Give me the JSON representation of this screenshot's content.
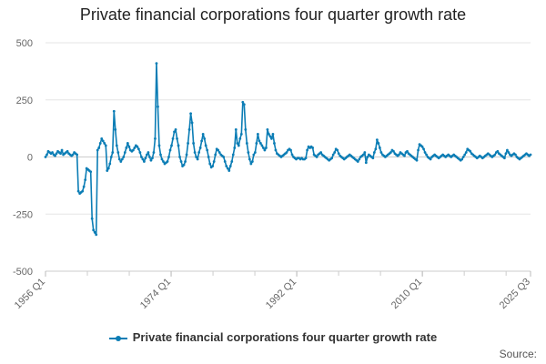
{
  "chart_data": {
    "type": "line",
    "title": "Private financial corporations four quarter growth rate",
    "xlabel": "",
    "ylabel": "",
    "ylim": [
      -500,
      500
    ],
    "yticks": [
      500,
      250,
      0,
      -250,
      -500
    ],
    "x_start": "1956 Q1",
    "x_end": "2025 Q3",
    "xtick_labels": [
      "1956 Q1",
      "1974 Q1",
      "1992 Q1",
      "2010 Q1",
      "2025 Q3"
    ],
    "grid": true,
    "legend_position": "bottom-center",
    "color": "#0b7db5",
    "series": [
      {
        "name": "Private financial corporations four quarter growth rate",
        "values": [
          0,
          10,
          25,
          20,
          15,
          20,
          10,
          5,
          15,
          25,
          20,
          15,
          30,
          10,
          15,
          20,
          25,
          15,
          10,
          5,
          10,
          20,
          15,
          10,
          -150,
          -160,
          -155,
          -150,
          -130,
          -100,
          -50,
          -55,
          -60,
          -65,
          -270,
          -320,
          -330,
          -340,
          30,
          40,
          60,
          80,
          70,
          60,
          50,
          -60,
          -50,
          -30,
          0,
          20,
          200,
          120,
          50,
          20,
          -10,
          -20,
          -10,
          0,
          20,
          40,
          60,
          45,
          30,
          25,
          30,
          40,
          50,
          45,
          35,
          20,
          0,
          -10,
          -20,
          -5,
          10,
          20,
          0,
          -15,
          -5,
          20,
          80,
          410,
          220,
          50,
          10,
          -10,
          -20,
          -30,
          -25,
          -20,
          0,
          30,
          50,
          80,
          110,
          120,
          80,
          50,
          0,
          -20,
          -40,
          -35,
          -20,
          10,
          60,
          120,
          190,
          150,
          60,
          20,
          0,
          -10,
          20,
          40,
          70,
          100,
          80,
          50,
          30,
          0,
          -30,
          -45,
          -40,
          -20,
          10,
          35,
          30,
          20,
          10,
          5,
          0,
          -20,
          -40,
          -50,
          -60,
          -40,
          -20,
          10,
          40,
          120,
          60,
          50,
          80,
          100,
          240,
          230,
          120,
          60,
          20,
          -10,
          -30,
          -20,
          10,
          20,
          60,
          100,
          70,
          60,
          50,
          40,
          30,
          40,
          120,
          100,
          90,
          80,
          100,
          60,
          30,
          15,
          10,
          5,
          0,
          5,
          10,
          15,
          20,
          30,
          35,
          30,
          10,
          0,
          -5,
          -10,
          -5,
          -5,
          -10,
          -5,
          -10,
          -10,
          -5,
          30,
          45,
          40,
          45,
          40,
          10,
          5,
          0,
          10,
          15,
          20,
          10,
          5,
          0,
          -5,
          -10,
          -15,
          -10,
          -5,
          10,
          20,
          35,
          30,
          15,
          5,
          0,
          -5,
          -10,
          -5,
          0,
          5,
          10,
          5,
          0,
          -5,
          -10,
          -15,
          -20,
          -10,
          0,
          5,
          10,
          20,
          -25,
          0,
          10,
          5,
          0,
          -5,
          20,
          35,
          75,
          60,
          40,
          20,
          10,
          5,
          0,
          5,
          10,
          15,
          20,
          30,
          25,
          15,
          10,
          5,
          10,
          20,
          15,
          10,
          5,
          20,
          25,
          15,
          10,
          5,
          0,
          -5,
          -10,
          -15,
          30,
          55,
          50,
          45,
          35,
          20,
          10,
          0,
          -5,
          -10,
          0,
          5,
          10,
          5,
          0,
          -5,
          0,
          5,
          10,
          5,
          0,
          5,
          10,
          5,
          0,
          5,
          10,
          5,
          0,
          -5,
          -10,
          -15,
          -10,
          0,
          10,
          20,
          35,
          30,
          25,
          15,
          10,
          5,
          0,
          -5,
          0,
          5,
          0,
          -5,
          0,
          5,
          10,
          15,
          10,
          5,
          0,
          5,
          10,
          20,
          25,
          15,
          10,
          5,
          0,
          -5,
          15,
          30,
          20,
          10,
          5,
          10,
          15,
          10,
          0,
          -5,
          -10,
          -5,
          0,
          5,
          10,
          15,
          10,
          5,
          10
        ]
      }
    ]
  },
  "source_label": "Source:"
}
